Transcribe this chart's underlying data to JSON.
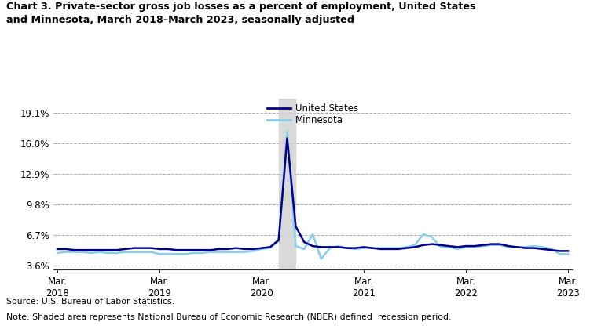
{
  "title": "Chart 3. Private-sector gross job losses as a percent of employment, United States\nand Minnesota, March 2018–March 2023, seasonally adjusted",
  "source": "Source: U.S. Bureau of Labor Statistics.",
  "note": "Note: Shaded area represents National Bureau of Economic Research (NBER) defined  recession period.",
  "legend_labels": [
    "United States",
    "Minnesota"
  ],
  "us_color": "#00008B",
  "mn_color": "#87CEEB",
  "shading_color": "#D3D3D3",
  "recession_start": 26,
  "recession_end": 28,
  "yticks": [
    3.6,
    6.7,
    9.8,
    12.9,
    16.0,
    19.1
  ],
  "ylim": [
    3.2,
    20.5
  ],
  "us_data": [
    5.3,
    5.3,
    5.2,
    5.2,
    5.2,
    5.2,
    5.2,
    5.2,
    5.3,
    5.4,
    5.4,
    5.4,
    5.3,
    5.3,
    5.2,
    5.2,
    5.2,
    5.2,
    5.2,
    5.3,
    5.3,
    5.4,
    5.3,
    5.3,
    5.4,
    5.5,
    6.2,
    16.5,
    7.6,
    6.0,
    5.6,
    5.5,
    5.5,
    5.5,
    5.4,
    5.4,
    5.5,
    5.4,
    5.3,
    5.3,
    5.3,
    5.4,
    5.5,
    5.7,
    5.8,
    5.7,
    5.6,
    5.5,
    5.6,
    5.6,
    5.7,
    5.8,
    5.8,
    5.6,
    5.5,
    5.4,
    5.4,
    5.3,
    5.2,
    5.1,
    5.1
  ],
  "mn_data": [
    4.9,
    5.0,
    5.0,
    5.0,
    4.9,
    5.0,
    4.9,
    4.9,
    5.0,
    5.0,
    5.0,
    5.0,
    4.8,
    4.8,
    4.8,
    4.8,
    4.9,
    4.9,
    5.0,
    5.0,
    5.0,
    5.0,
    5.0,
    5.1,
    5.3,
    5.4,
    6.1,
    17.2,
    5.6,
    5.3,
    6.8,
    4.3,
    5.4,
    5.6,
    5.4,
    5.3,
    5.4,
    5.4,
    5.4,
    5.4,
    5.4,
    5.5,
    5.7,
    6.8,
    6.5,
    5.5,
    5.5,
    5.3,
    5.5,
    5.5,
    5.6,
    5.7,
    5.7,
    5.5,
    5.5,
    5.5,
    5.6,
    5.5,
    5.3,
    4.8,
    4.8
  ],
  "n_points": 61,
  "x_tick_positions": [
    0,
    12,
    24,
    36,
    48,
    60
  ],
  "x_tick_labels": [
    "Mar.\n2018",
    "Mar.\n2019",
    "Mar.\n2020",
    "Mar.\n2021",
    "Mar.\n2022",
    "Mar.\n2023"
  ]
}
